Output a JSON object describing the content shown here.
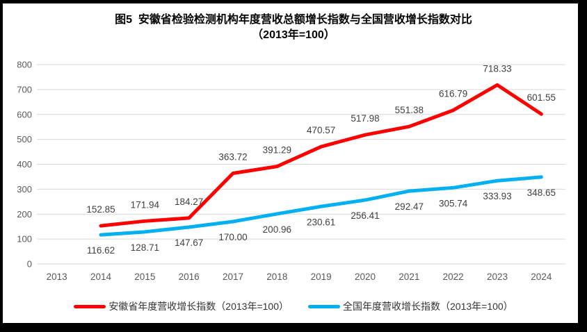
{
  "title": {
    "line1": "图5  安徽省检验检测机构年度营收总额增长指数与全国营收增长指数对比",
    "line2": "（2013年=100）"
  },
  "chart_data": {
    "type": "line",
    "title": "图5 安徽省检验检测机构年度营收总额增长指数与全国营收增长指数对比（2013年=100）",
    "categories": [
      "2013",
      "2014",
      "2015",
      "2016",
      "2017",
      "2018",
      "2019",
      "2020",
      "2021",
      "2022",
      "2023",
      "2024"
    ],
    "first_value_category": "2014",
    "series": [
      {
        "name": "安徽省年度营收增长指数（2013年=100）",
        "color": "#FE0000",
        "label_position": "above",
        "values": [
          152.85,
          171.94,
          184.27,
          363.72,
          391.29,
          470.57,
          517.98,
          551.38,
          616.79,
          718.33,
          601.55
        ]
      },
      {
        "name": "全国年度营收增长指数（2013年=100）",
        "color": "#00B0F0",
        "label_position": "below",
        "values": [
          116.62,
          128.71,
          147.67,
          170.0,
          200.96,
          230.61,
          256.41,
          292.47,
          305.74,
          333.93,
          348.65
        ]
      }
    ],
    "y_axis": {
      "min": 0,
      "max": 800,
      "step": 100,
      "ticks": [
        "0",
        "100",
        "200",
        "300",
        "400",
        "500",
        "600",
        "700",
        "800"
      ]
    },
    "grid": "horizontal",
    "legend_position": "bottom",
    "label_decimals": 2
  },
  "colors": {
    "gridline": "#D9D9D9",
    "tick_label": "#595959",
    "data_label": "#404040",
    "title": "#000000",
    "frame": "#000000",
    "background": "#FFFFFF"
  }
}
